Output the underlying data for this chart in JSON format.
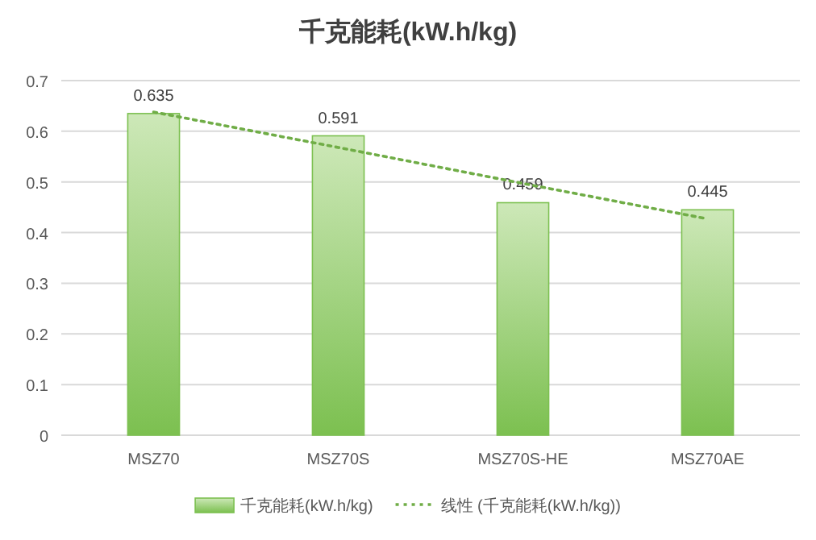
{
  "chart_data": {
    "type": "bar",
    "title": "千克能耗(kW.h/kg)",
    "categories": [
      "MSZ70",
      "MSZ70S",
      "MSZ70S-HE",
      "MSZ70AE"
    ],
    "series": [
      {
        "name": "千克能耗(kW.h/kg)",
        "color": "#7cc050",
        "values": [
          0.635,
          0.591,
          0.459,
          0.445
        ],
        "value_labels": [
          "0.635",
          "0.591",
          "0.459",
          "0.445"
        ]
      },
      {
        "name": "线性 (千克能耗(kW.h/kg))",
        "type": "line",
        "color": "#70ad47",
        "line_style": "dotted",
        "values": [
          0.638,
          0.568,
          0.497,
          0.427
        ]
      }
    ],
    "ylim": [
      0,
      0.7
    ],
    "yticks": [
      0,
      0.1,
      0.2,
      0.3,
      0.4,
      0.5,
      0.6,
      0.7
    ],
    "grid": "y",
    "legend": "bottom"
  }
}
